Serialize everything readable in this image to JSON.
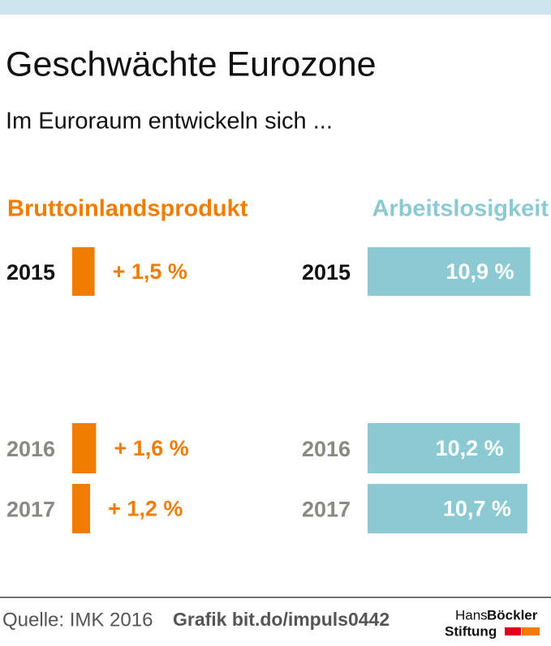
{
  "header": {
    "title": "Geschwächte Eurozone",
    "subtitle": "Im Euroraum entwickeln sich ..."
  },
  "chart_data": [
    {
      "type": "bar",
      "orientation": "horizontal",
      "title": "Bruttoinlandsprodukt",
      "color": "#f07d00",
      "categories": [
        "2015",
        "2016",
        "2017"
      ],
      "values": [
        1.5,
        1.6,
        1.2
      ],
      "value_labels": [
        "+ 1,5 %",
        "+ 1,6 %",
        "+ 1,2 %"
      ]
    },
    {
      "type": "bar",
      "orientation": "horizontal",
      "title": "Arbeitslosigkeit",
      "color": "#8ccad3",
      "categories": [
        "2015",
        "2016",
        "2017"
      ],
      "values": [
        10.9,
        10.2,
        10.7
      ],
      "value_labels": [
        "10,9 %",
        "10,2 %",
        "10,7 %"
      ]
    }
  ],
  "footer": {
    "source": "Quelle: IMK 2016",
    "link": "Grafik bit.do/impuls0442",
    "logo": [
      "Hans",
      "Böckler",
      "Stiftung"
    ]
  }
}
